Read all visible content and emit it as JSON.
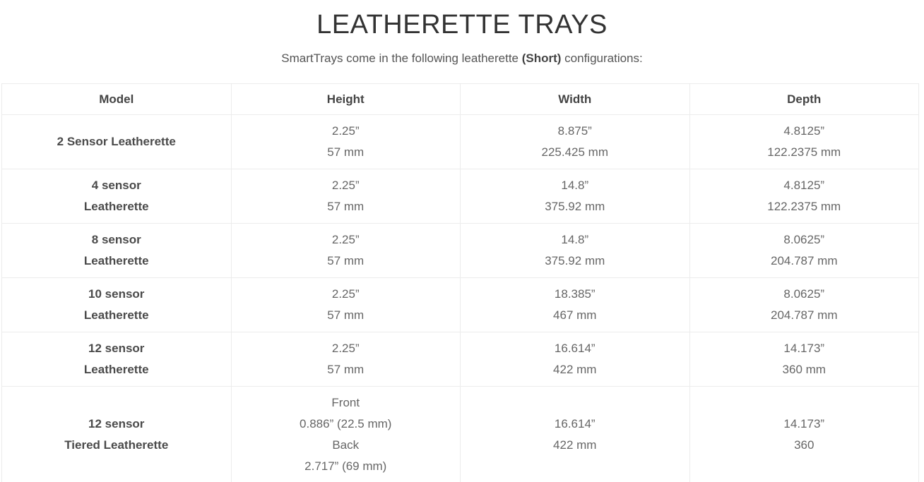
{
  "page": {
    "title": "LEATHERETTE TRAYS",
    "subtitle_prefix": "SmartTrays come in the following leatherette ",
    "subtitle_bold": "(Short)",
    "subtitle_suffix": " configurations:"
  },
  "table": {
    "columns": [
      "Model",
      "Height",
      "Width",
      "Depth"
    ],
    "rows": [
      {
        "model": [
          "2 Sensor Leatherette"
        ],
        "height": [
          "2.25”",
          "57 mm"
        ],
        "width": [
          "8.875”",
          "225.425 mm"
        ],
        "depth": [
          "4.8125”",
          "122.2375 mm"
        ]
      },
      {
        "model": [
          "4 sensor",
          "Leatherette"
        ],
        "height": [
          "2.25”",
          "57 mm"
        ],
        "width": [
          "14.8”",
          "375.92 mm"
        ],
        "depth": [
          "4.8125”",
          "122.2375 mm"
        ]
      },
      {
        "model": [
          "8 sensor",
          "Leatherette"
        ],
        "height": [
          "2.25”",
          "57 mm"
        ],
        "width": [
          "14.8”",
          "375.92 mm"
        ],
        "depth": [
          "8.0625”",
          "204.787 mm"
        ]
      },
      {
        "model": [
          "10 sensor",
          "Leatherette"
        ],
        "height": [
          "2.25”",
          "57 mm"
        ],
        "width": [
          "18.385”",
          "467 mm"
        ],
        "depth": [
          "8.0625”",
          "204.787 mm"
        ]
      },
      {
        "model": [
          "12 sensor",
          "Leatherette"
        ],
        "height": [
          "2.25”",
          "57 mm"
        ],
        "width": [
          "16.614”",
          "422 mm"
        ],
        "depth": [
          "14.173”",
          "360 mm"
        ]
      },
      {
        "model": [
          "12 sensor",
          "Tiered Leatherette"
        ],
        "height": [
          "Front",
          "0.886” (22.5 mm)",
          "Back",
          "2.717” (69 mm)"
        ],
        "width": [
          "16.614”",
          "422 mm"
        ],
        "depth": [
          "14.173”",
          "360"
        ]
      }
    ]
  }
}
